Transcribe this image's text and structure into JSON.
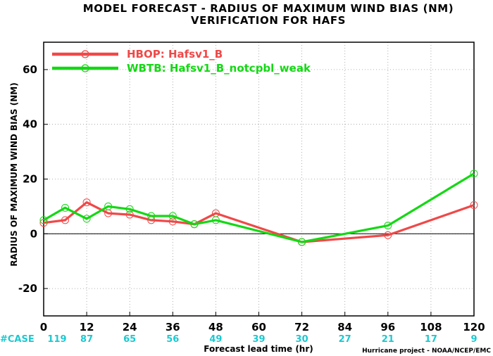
{
  "chart_data": {
    "type": "line",
    "title": "MODEL FORECAST - RADIUS OF MAXIMUM WIND BIAS (NM)",
    "subtitle": "VERIFICATION FOR HAFS",
    "xlabel": "Forecast lead time (hr)",
    "ylabel": "RADIUS OF MAXIMUM WIND BIAS (NM)",
    "xlim": [
      0,
      120
    ],
    "ylim": [
      -30,
      70
    ],
    "xticks": [
      0,
      12,
      24,
      36,
      48,
      60,
      72,
      84,
      96,
      108,
      120
    ],
    "yticks": [
      -20,
      0,
      20,
      40,
      60
    ],
    "grid": true,
    "zero_line": true,
    "legend_position": "top-left",
    "case_label": "#CASE",
    "case_counts": [
      {
        "x": 0,
        "n": "119"
      },
      {
        "x": 12,
        "n": "87"
      },
      {
        "x": 24,
        "n": "65"
      },
      {
        "x": 36,
        "n": "56"
      },
      {
        "x": 48,
        "n": "49"
      },
      {
        "x": 60,
        "n": "39"
      },
      {
        "x": 72,
        "n": "30"
      },
      {
        "x": 84,
        "n": "27"
      },
      {
        "x": 96,
        "n": "21"
      },
      {
        "x": 108,
        "n": "17"
      },
      {
        "x": 120,
        "n": "9"
      }
    ],
    "series": [
      {
        "name": "HBOP: Hafsv1_B",
        "color": "#f04848",
        "x": [
          0,
          6,
          12,
          18,
          24,
          30,
          36,
          42,
          48,
          72,
          96,
          120
        ],
        "y": [
          4,
          5,
          11.5,
          7.5,
          7,
          5,
          4.5,
          3.5,
          7.5,
          -3,
          -0.5,
          10.5
        ]
      },
      {
        "name": "WBTB: Hafsv1_B_notcpbl_weak",
        "color": "#14d814",
        "x": [
          0,
          6,
          12,
          18,
          24,
          30,
          36,
          42,
          48,
          72,
          96,
          120
        ],
        "y": [
          5,
          9.5,
          5.5,
          10,
          9,
          6.5,
          6.5,
          3.5,
          5,
          -3,
          3,
          22
        ]
      }
    ],
    "footer": "Hurricane project - NOAA/NCEP/EMC"
  }
}
